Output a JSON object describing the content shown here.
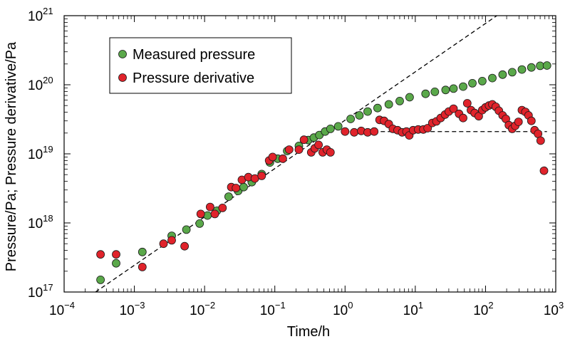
{
  "chart_data": {
    "type": "scatter",
    "xscale": "log",
    "yscale": "log",
    "xlim": [
      0.0001,
      1000
    ],
    "ylim": [
      1e+17,
      1e+21
    ],
    "xlabel": "Time/h",
    "ylabel": "Pressure/Pa; Pressure derivative/Pa",
    "x_ticks": [
      {
        "base": "10",
        "exp": "−4"
      },
      {
        "base": "10",
        "exp": "−3"
      },
      {
        "base": "10",
        "exp": "−2"
      },
      {
        "base": "10",
        "exp": "−1"
      },
      {
        "base": "10",
        "exp": "0"
      },
      {
        "base": "10",
        "exp": "1"
      },
      {
        "base": "10",
        "exp": "2"
      },
      {
        "base": "10",
        "exp": "3"
      }
    ],
    "y_ticks": [
      {
        "base": "10",
        "exp": "17"
      },
      {
        "base": "10",
        "exp": "18"
      },
      {
        "base": "10",
        "exp": "19"
      },
      {
        "base": "10",
        "exp": "20"
      },
      {
        "base": "10",
        "exp": "21"
      }
    ],
    "legend": {
      "position": "top-left"
    },
    "series": [
      {
        "name": "Measured pressure",
        "color": "#5aa84a",
        "marker": "circle",
        "points": [
          [
            0.00033,
            1.5e+17
          ],
          [
            0.00055,
            2.6e+17
          ],
          [
            0.0013,
            3.8e+17
          ],
          [
            0.0034,
            6.5e+17
          ],
          [
            0.0055,
            8e+17
          ],
          [
            0.0085,
            9.8e+17
          ],
          [
            0.011,
            1.28e+18
          ],
          [
            0.015,
            1.5e+18
          ],
          [
            0.022,
            2.4e+18
          ],
          [
            0.03,
            2.9e+18
          ],
          [
            0.036,
            3.3e+18
          ],
          [
            0.047,
            3.9e+18
          ],
          [
            0.065,
            5.1e+18
          ],
          [
            0.085,
            7.5e+18
          ],
          [
            0.11,
            8.5e+18
          ],
          [
            0.15,
            1.1e+19
          ],
          [
            0.22,
            1.3e+19
          ],
          [
            0.3,
            1.58e+19
          ],
          [
            0.36,
            1.72e+19
          ],
          [
            0.43,
            1.87e+19
          ],
          [
            0.52,
            2.1e+19
          ],
          [
            0.62,
            2.3e+19
          ],
          [
            0.8,
            2.5e+19
          ],
          [
            1.2,
            3.2e+19
          ],
          [
            1.6,
            3.6e+19
          ],
          [
            2.1,
            4.1e+19
          ],
          [
            2.9,
            4.6e+19
          ],
          [
            4.2,
            5.2e+19
          ],
          [
            6.0,
            5.8e+19
          ],
          [
            8.3,
            6.6e+19
          ],
          [
            14,
            7.4e+19
          ],
          [
            19,
            7.9e+19
          ],
          [
            27,
            8.4e+19
          ],
          [
            35,
            8.8e+19
          ],
          [
            48,
            9.4e+19
          ],
          [
            65,
            1.05e+20
          ],
          [
            90,
            1.13e+20
          ],
          [
            125,
            1.25e+20
          ],
          [
            175,
            1.4e+20
          ],
          [
            240,
            1.52e+20
          ],
          [
            330,
            1.66e+20
          ],
          [
            450,
            1.78e+20
          ],
          [
            600,
            1.88e+20
          ],
          [
            750,
            1.9e+20
          ]
        ]
      },
      {
        "name": "Pressure derivative",
        "color": "#e0232b",
        "marker": "circle",
        "points": [
          [
            0.00033,
            3.5e+17
          ],
          [
            0.00055,
            3.5e+17
          ],
          [
            0.0013,
            2.3e+17
          ],
          [
            0.0026,
            5e+17
          ],
          [
            0.0034,
            5.6e+17
          ],
          [
            0.0052,
            4.6e+17
          ],
          [
            0.0088,
            1.35e+18
          ],
          [
            0.012,
            1.7e+18
          ],
          [
            0.014,
            1.35e+18
          ],
          [
            0.018,
            1.65e+18
          ],
          [
            0.024,
            3.3e+18
          ],
          [
            0.028,
            3.2e+18
          ],
          [
            0.034,
            4.2e+18
          ],
          [
            0.042,
            4.6e+18
          ],
          [
            0.052,
            4.4e+18
          ],
          [
            0.065,
            4.8e+18
          ],
          [
            0.083,
            8e+18
          ],
          [
            0.093,
            9e+18
          ],
          [
            0.13,
            8.5e+18
          ],
          [
            0.16,
            1.15e+19
          ],
          [
            0.22,
            1.15e+19
          ],
          [
            0.26,
            1.6e+19
          ],
          [
            0.33,
            1.05e+19
          ],
          [
            0.37,
            1.2e+19
          ],
          [
            0.42,
            1.35e+19
          ],
          [
            0.48,
            1.05e+19
          ],
          [
            0.55,
            1.15e+19
          ],
          [
            0.62,
            1.05e+19
          ],
          [
            1.0,
            2.1e+19
          ],
          [
            1.35,
            2.05e+19
          ],
          [
            1.7,
            2.15e+19
          ],
          [
            2.1,
            2.05e+19
          ],
          [
            2.6,
            2.1e+19
          ],
          [
            3.1,
            3.1e+19
          ],
          [
            3.6,
            3e+19
          ],
          [
            4.2,
            2.7e+19
          ],
          [
            4.8,
            2.3e+19
          ],
          [
            5.6,
            2.2e+19
          ],
          [
            6.5,
            2.05e+19
          ],
          [
            7.5,
            2.1e+19
          ],
          [
            8.2,
            1.85e+19
          ],
          [
            9.3,
            2.2e+19
          ],
          [
            11,
            2.25e+19
          ],
          [
            13,
            2.25e+19
          ],
          [
            15,
            2.35e+19
          ],
          [
            17.5,
            2.8e+19
          ],
          [
            20,
            2.95e+19
          ],
          [
            23,
            3.3e+19
          ],
          [
            26.5,
            3.7e+19
          ],
          [
            30,
            4.1e+19
          ],
          [
            35,
            4.5e+19
          ],
          [
            42,
            3.8e+19
          ],
          [
            48,
            3.3e+19
          ],
          [
            55,
            5.4e+19
          ],
          [
            62,
            4.3e+19
          ],
          [
            70,
            3.9e+19
          ],
          [
            80,
            3.5e+19
          ],
          [
            90,
            4.3e+19
          ],
          [
            100,
            4.7e+19
          ],
          [
            112,
            5e+19
          ],
          [
            125,
            5.2e+19
          ],
          [
            140,
            4.8e+19
          ],
          [
            155,
            4.2e+19
          ],
          [
            175,
            3.6e+19
          ],
          [
            195,
            3.2e+19
          ],
          [
            215,
            2.6e+19
          ],
          [
            240,
            2.3e+19
          ],
          [
            265,
            2.55e+19
          ],
          [
            295,
            2.9e+19
          ],
          [
            330,
            4.3e+19
          ],
          [
            370,
            4.05e+19
          ],
          [
            410,
            3.6e+19
          ],
          [
            450,
            3e+19
          ],
          [
            500,
            2.2e+19
          ],
          [
            560,
            1.95e+19
          ],
          [
            610,
            1.55e+19
          ],
          [
            680,
            5.7e+18
          ]
        ]
      }
    ],
    "reference_lines": [
      {
        "style": "dashed",
        "points": [
          [
            0.00028,
            1e+17
          ],
          [
            145,
            1e+21
          ]
        ]
      },
      {
        "style": "dashed",
        "points": [
          [
            1,
            2.1e+19
          ],
          [
            750,
            2.1e+19
          ]
        ]
      }
    ]
  }
}
